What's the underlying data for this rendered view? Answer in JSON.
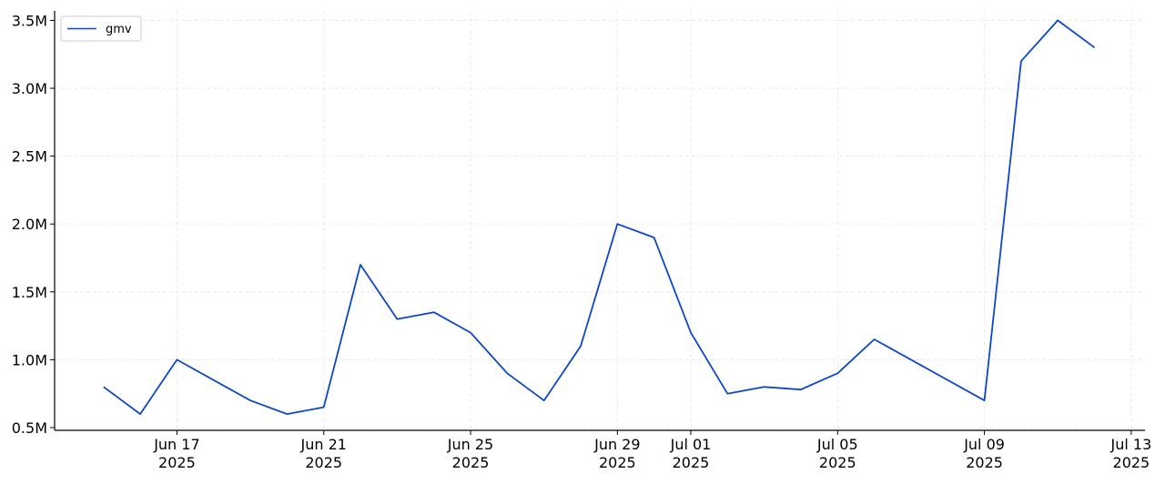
{
  "chart_data": {
    "type": "line",
    "title": "",
    "xlabel": "",
    "ylabel": "",
    "x_type": "date",
    "xlim": [
      "2025-06-13T16:00",
      "2025-07-13T09:00"
    ],
    "ylim": [
      480000,
      3570000
    ],
    "grid": true,
    "legend_placement": "top-left",
    "x_ticks": [
      {
        "date": "2025-06-17",
        "label": "Jun 17",
        "year": "2025"
      },
      {
        "date": "2025-06-21",
        "label": "Jun 21",
        "year": "2025"
      },
      {
        "date": "2025-06-25",
        "label": "Jun 25",
        "year": "2025"
      },
      {
        "date": "2025-06-29",
        "label": "Jun 29",
        "year": "2025"
      },
      {
        "date": "2025-07-01",
        "label": "Jul 01",
        "year": "2025"
      },
      {
        "date": "2025-07-05",
        "label": "Jul 05",
        "year": "2025"
      },
      {
        "date": "2025-07-09",
        "label": "Jul 09",
        "year": "2025"
      },
      {
        "date": "2025-07-13",
        "label": "Jul 13",
        "year": "2025"
      }
    ],
    "y_ticks": [
      {
        "value": 500000,
        "label": "0.5M"
      },
      {
        "value": 1000000,
        "label": "1.0M"
      },
      {
        "value": 1500000,
        "label": "1.5M"
      },
      {
        "value": 2000000,
        "label": "2.0M"
      },
      {
        "value": 2500000,
        "label": "2.5M"
      },
      {
        "value": 3000000,
        "label": "3.0M"
      },
      {
        "value": 3500000,
        "label": "3.5M"
      }
    ],
    "series": [
      {
        "name": "gmv",
        "color": "#0b47c9",
        "x": [
          "2025-06-15",
          "2025-06-16",
          "2025-06-17",
          "2025-06-19",
          "2025-06-20",
          "2025-06-21",
          "2025-06-22",
          "2025-06-23",
          "2025-06-24",
          "2025-06-25",
          "2025-06-26",
          "2025-06-27",
          "2025-06-28",
          "2025-06-29",
          "2025-06-30",
          "2025-07-01",
          "2025-07-02",
          "2025-07-03",
          "2025-07-04",
          "2025-07-05",
          "2025-07-06",
          "2025-07-09",
          "2025-07-10",
          "2025-07-11",
          "2025-07-12"
        ],
        "values": [
          800000,
          600000,
          1000000,
          700000,
          600000,
          650000,
          1700000,
          1300000,
          1350000,
          1200000,
          900000,
          700000,
          1100000,
          2000000,
          1900000,
          1200000,
          750000,
          800000,
          780000,
          900000,
          1150000,
          700000,
          3200000,
          3500000,
          3300000
        ]
      }
    ]
  }
}
